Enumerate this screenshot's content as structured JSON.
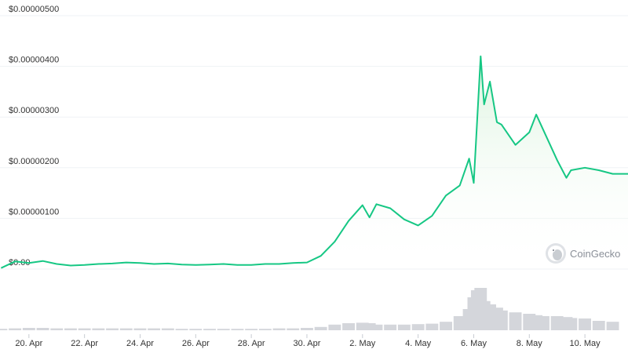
{
  "chart_data": {
    "type": "area",
    "x_ticks": [
      "20. Apr",
      "22. Apr",
      "24. Apr",
      "26. Apr",
      "28. Apr",
      "30. Apr",
      "2. May",
      "4. May",
      "6. May",
      "8. May",
      "10. May"
    ],
    "y_ticks": [
      "$0.00",
      "$0.00000100",
      "$0.00000200",
      "$0.00000300",
      "$0.00000400",
      "$0.00000500"
    ],
    "y_tick_values": [
      0,
      1e-06,
      2e-06,
      3e-06,
      4e-06,
      5e-06
    ],
    "ylim": [
      0,
      5e-06
    ],
    "xlim": [
      "2023-04-19",
      "2023-05-11"
    ],
    "grid": true,
    "colors": {
      "line": "#16c784",
      "area_top": "#d9f3dc",
      "volume": "#d4d6db",
      "grid": "#eff2f5"
    },
    "series": [
      {
        "x": [
          "2023-04-19",
          "2023-04-19T12:00",
          "2023-04-20",
          "2023-04-20T12:00",
          "2023-04-21",
          "2023-04-21T12:00",
          "2023-04-22",
          "2023-04-22T12:00",
          "2023-04-23",
          "2023-04-23T12:00",
          "2023-04-24",
          "2023-04-24T12:00",
          "2023-04-25",
          "2023-04-25T12:00",
          "2023-04-26",
          "2023-04-26T12:00",
          "2023-04-27",
          "2023-04-27T12:00",
          "2023-04-28",
          "2023-04-28T12:00",
          "2023-04-29",
          "2023-04-29T12:00",
          "2023-04-30",
          "2023-04-30T12:00",
          "2023-05-01",
          "2023-05-01T12:00",
          "2023-05-02",
          "2023-05-02T06:00",
          "2023-05-02T12:00",
          "2023-05-03",
          "2023-05-03T12:00",
          "2023-05-04",
          "2023-05-04T12:00",
          "2023-05-05",
          "2023-05-05T12:00",
          "2023-05-05T20:00",
          "2023-05-06",
          "2023-05-06T03:00",
          "2023-05-06T06:00",
          "2023-05-06T09:00",
          "2023-05-06T14:00",
          "2023-05-06T20:00",
          "2023-05-07",
          "2023-05-07T12:00",
          "2023-05-08",
          "2023-05-08T06:00",
          "2023-05-08T12:00",
          "2023-05-09",
          "2023-05-09T08:00",
          "2023-05-09T12:00",
          "2023-05-10",
          "2023-05-10T12:00",
          "2023-05-11"
        ],
        "y": [
          2e-08,
          1.5e-07,
          1.2e-07,
          1.6e-07,
          1e-07,
          7e-08,
          8e-08,
          1e-07,
          1.1e-07,
          1.3e-07,
          1.2e-07,
          1e-07,
          1.1e-07,
          9e-08,
          8e-08,
          9e-08,
          1e-07,
          8e-08,
          8e-08,
          1e-07,
          1e-07,
          1.2e-07,
          1.3e-07,
          2.6e-07,
          5.4e-07,
          9.5e-07,
          1.26e-06,
          1.02e-06,
          1.28e-06,
          1.2e-06,
          9.8e-07,
          8.6e-07,
          1.05e-06,
          1.45e-06,
          1.65e-06,
          2.18e-06,
          1.7e-06,
          2.95e-06,
          4.2e-06,
          3.25e-06,
          3.7e-06,
          2.9e-06,
          2.85e-06,
          2.45e-06,
          2.7e-06,
          3.05e-06,
          2.75e-06,
          2.15e-06,
          1.8e-06,
          1.95e-06,
          2e-06,
          1.95e-06,
          1.88e-06
        ]
      }
    ],
    "volume_relative": [
      0.03,
      0.04,
      0.05,
      0.05,
      0.04,
      0.04,
      0.04,
      0.04,
      0.04,
      0.04,
      0.04,
      0.04,
      0.04,
      0.03,
      0.03,
      0.03,
      0.03,
      0.03,
      0.03,
      0.03,
      0.04,
      0.04,
      0.05,
      0.07,
      0.12,
      0.15,
      0.16,
      0.15,
      0.12,
      0.12,
      0.12,
      0.13,
      0.14,
      0.18,
      0.3,
      0.45,
      0.7,
      0.85,
      0.9,
      0.62,
      0.55,
      0.48,
      0.42,
      0.38,
      0.35,
      0.32,
      0.3,
      0.3,
      0.28,
      0.26,
      0.25,
      0.2,
      0.18
    ]
  },
  "watermark": {
    "text": "CoinGecko",
    "icon": "coingecko-gecko-icon"
  }
}
